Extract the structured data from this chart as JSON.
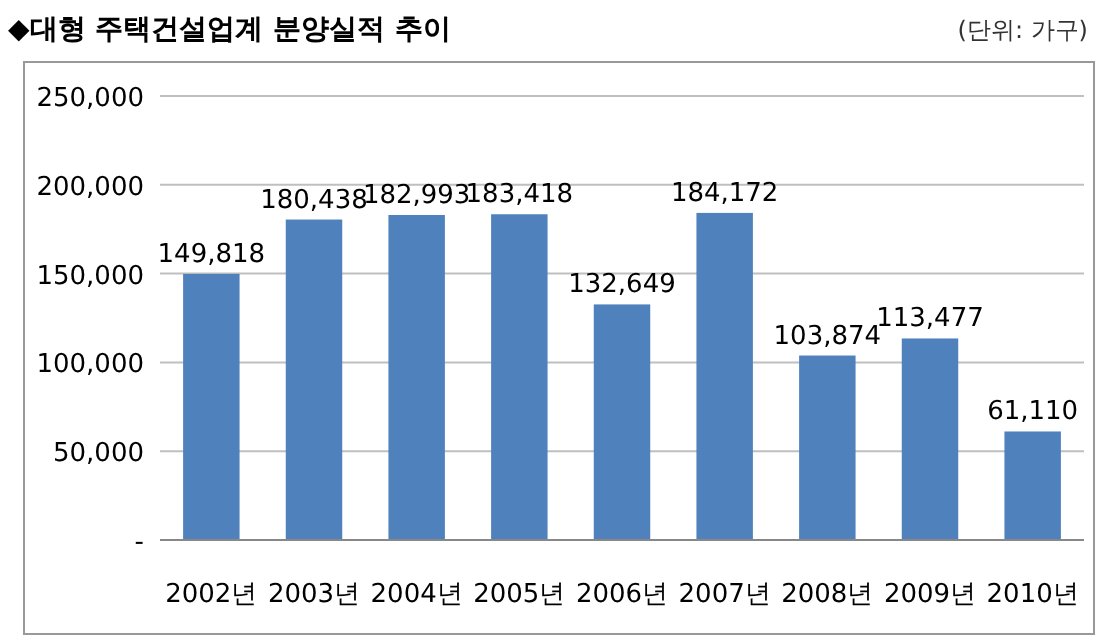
{
  "chart_data": {
    "type": "bar",
    "title": "◆대형 주택건설업계 분양실적 추이",
    "annotations": [
      "(단위: 가구)"
    ],
    "categories": [
      "2002년",
      "2003년",
      "2004년",
      "2005년",
      "2006년",
      "2007년",
      "2008년",
      "2009년",
      "2010년"
    ],
    "values": [
      149818,
      180438,
      182993,
      183418,
      132649,
      184172,
      103874,
      113477,
      61110
    ],
    "value_labels": [
      "149,818",
      "180,438",
      "182,993",
      "183,418",
      "132,649",
      "184,172",
      "103,874",
      "113,477",
      "61,110"
    ],
    "color": "#4f81bd",
    "ylim": [
      0,
      250000
    ],
    "yticks": [
      {
        "value": 0,
        "label": "-"
      },
      {
        "value": 50000,
        "label": "50,000"
      },
      {
        "value": 100000,
        "label": "100,000"
      },
      {
        "value": 150000,
        "label": "150,000"
      },
      {
        "value": 200000,
        "label": "200,000"
      },
      {
        "value": 250000,
        "label": "250,000"
      }
    ],
    "grid": true
  }
}
